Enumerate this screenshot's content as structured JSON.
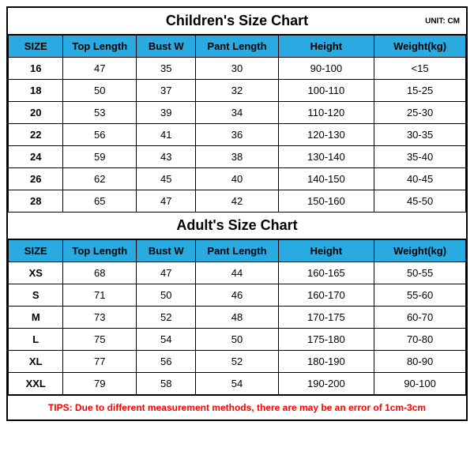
{
  "layout": {
    "border_color": "#000000",
    "header_bg": "#29abe2",
    "header_text_color": "#000000",
    "body_bg": "#ffffff",
    "tips_color": "#ff0000",
    "title_fontsize": 18,
    "cell_fontsize": 13,
    "tips_fontsize": 12,
    "unit_fontsize": 10
  },
  "children": {
    "title": "Children's Size Chart",
    "unit": "UNIT: CM",
    "columns": [
      "SIZE",
      "Top Length",
      "Bust W",
      "Pant Length",
      "Height",
      "Weight(kg)"
    ],
    "rows": [
      [
        "16",
        "47",
        "35",
        "30",
        "90-100",
        "<15"
      ],
      [
        "18",
        "50",
        "37",
        "32",
        "100-110",
        "15-25"
      ],
      [
        "20",
        "53",
        "39",
        "34",
        "110-120",
        "25-30"
      ],
      [
        "22",
        "56",
        "41",
        "36",
        "120-130",
        "30-35"
      ],
      [
        "24",
        "59",
        "43",
        "38",
        "130-140",
        "35-40"
      ],
      [
        "26",
        "62",
        "45",
        "40",
        "140-150",
        "40-45"
      ],
      [
        "28",
        "65",
        "47",
        "42",
        "150-160",
        "45-50"
      ]
    ]
  },
  "adult": {
    "title": "Adult's Size Chart",
    "columns": [
      "SIZE",
      "Top Length",
      "Bust W",
      "Pant Length",
      "Height",
      "Weight(kg)"
    ],
    "rows": [
      [
        "XS",
        "68",
        "47",
        "44",
        "160-165",
        "50-55"
      ],
      [
        "S",
        "71",
        "50",
        "46",
        "160-170",
        "55-60"
      ],
      [
        "M",
        "73",
        "52",
        "48",
        "170-175",
        "60-70"
      ],
      [
        "L",
        "75",
        "54",
        "50",
        "175-180",
        "70-80"
      ],
      [
        "XL",
        "77",
        "56",
        "52",
        "180-190",
        "80-90"
      ],
      [
        "XXL",
        "79",
        "58",
        "54",
        "190-200",
        "90-100"
      ]
    ]
  },
  "tips": "TIPS: Due to different measurement methods, there are may be an error of 1cm-3cm"
}
